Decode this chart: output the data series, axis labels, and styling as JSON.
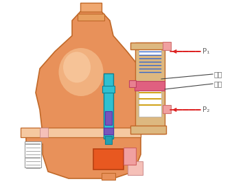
{
  "bg_color": "#ffffff",
  "body_orange": "#e8915a",
  "body_edge": "#c06828",
  "body_light": "#f5c8a0",
  "inner_light": "#fce8d8",
  "light_pink": "#f5c0b8",
  "mid_pink": "#f0a0a0",
  "dark_pink": "#e88090",
  "hot_pink": "#e06080",
  "orange_ball": "#e85820",
  "orange_edge": "#b84010",
  "cyan_stem": "#30c0d0",
  "cyan_edge": "#108090",
  "purple": "#7755bb",
  "blue_line": "#3366cc",
  "yellow_line": "#cc9900",
  "arrow_red": "#dd2020",
  "line_dark": "#444444",
  "text_gray": "#666666",
  "white": "#ffffff",
  "gauge_gray": "#999999",
  "label_p1": "P₁",
  "label_p2": "P₂",
  "label_piston": "活塞",
  "label_cylinder": "气缸",
  "cyl_tan": "#ddb880",
  "cyl_inner": "#f0e0c8"
}
